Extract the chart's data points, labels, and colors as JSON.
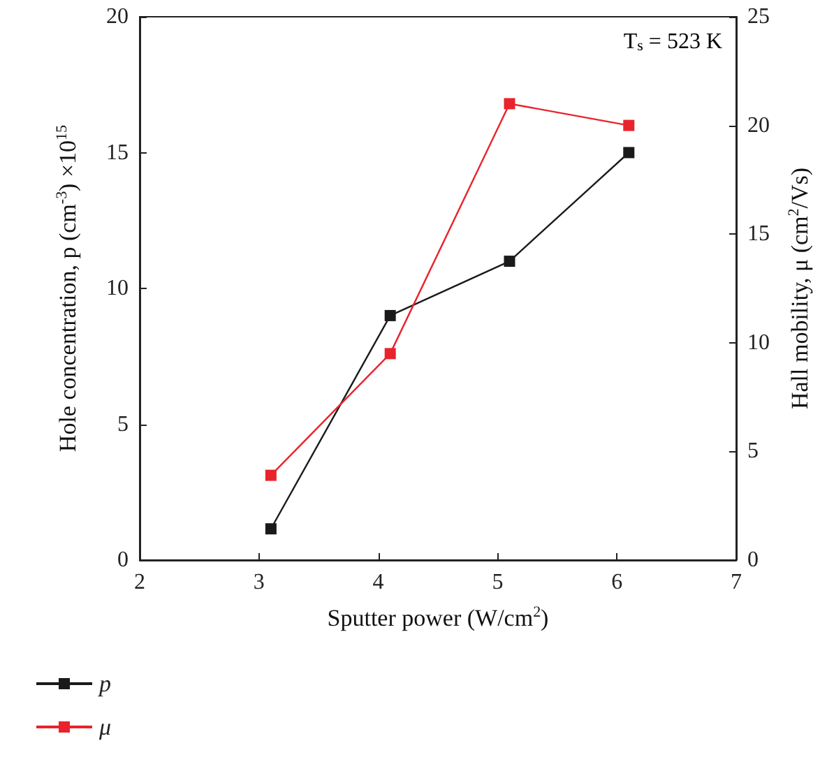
{
  "chart_data": {
    "type": "line",
    "xlabel": "Sputter power (W/cm$^{2}$)",
    "ylabel": "Hole concentration, p (cm$^{-3}$) ×10$^{15}$",
    "y2label": "Hall mobility, μ (cm$^{2}$/Vs)",
    "x": [
      3.1,
      4.1,
      5.1,
      6.1
    ],
    "series": [
      {
        "name": "p",
        "color": "#1a1a1a",
        "values": [
          1.15,
          9,
          11,
          15
        ]
      },
      {
        "name": "μ",
        "color": "#e8232b",
        "values": [
          3.9,
          9.5,
          21,
          20
        ],
        "axis": "y2"
      }
    ],
    "xlim": [
      2,
      7
    ],
    "xticks": [
      2,
      3,
      4,
      5,
      6,
      7
    ],
    "ylim": [
      0,
      20
    ],
    "yticks": [
      0,
      5,
      10,
      15,
      20
    ],
    "y2lim": [
      0,
      25
    ],
    "y2ticks": [
      0,
      5,
      10,
      15,
      20,
      25
    ],
    "annotations": [
      "T$_{s}$ = 523 K"
    ],
    "marker": "square",
    "line_style": "solid",
    "grid": false,
    "legend": "bottom left"
  }
}
